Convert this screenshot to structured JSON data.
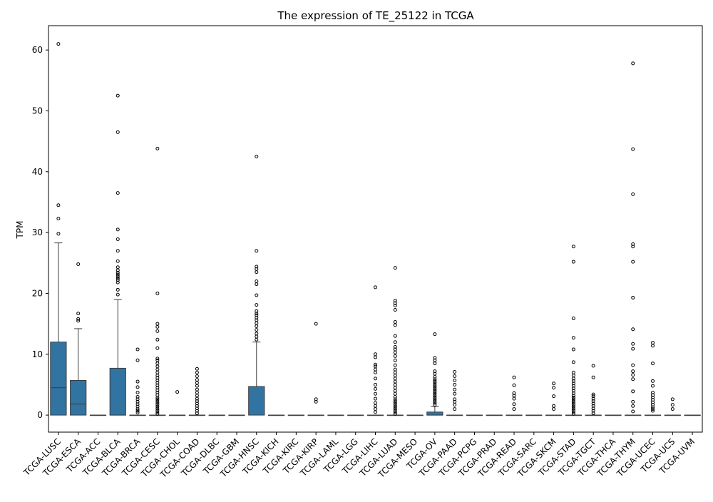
{
  "chart_data": {
    "type": "boxplot",
    "title": "The expression of TE_25122 in TCGA",
    "xlabel": "",
    "ylabel": "TPM",
    "ylim": [
      -2.8,
      64
    ],
    "yticks": [
      0,
      10,
      20,
      30,
      40,
      50,
      60
    ],
    "grid": false,
    "legend": "none",
    "box_color": "#3274a1",
    "categories": [
      "TCGA-LUSC",
      "TCGA-ESCA",
      "TCGA-ACC",
      "TCGA-BLCA",
      "TCGA-BRCA",
      "TCGA-CESC",
      "TCGA-CHOL",
      "TCGA-COAD",
      "TCGA-DLBC",
      "TCGA-GBM",
      "TCGA-HNSC",
      "TCGA-KICH",
      "TCGA-KIRC",
      "TCGA-KIRP",
      "TCGA-LAML",
      "TCGA-LGG",
      "TCGA-LIHC",
      "TCGA-LUAD",
      "TCGA-MESO",
      "TCGA-OV",
      "TCGA-PAAD",
      "TCGA-PCPG",
      "TCGA-PRAD",
      "TCGA-READ",
      "TCGA-SARC",
      "TCGA-SKCM",
      "TCGA-STAD",
      "TCGA-TGCT",
      "TCGA-THCA",
      "TCGA-THYM",
      "TCGA-UCEC",
      "TCGA-UCS",
      "TCGA-UVM"
    ],
    "boxes": [
      {
        "q1": 0,
        "median": 4.5,
        "q3": 12,
        "wlo": 0,
        "whi": 28.3,
        "outliers": [
          29.8,
          32.3,
          34.5,
          61
        ]
      },
      {
        "q1": 0,
        "median": 1.8,
        "q3": 5.7,
        "wlo": 0,
        "whi": 14.2,
        "outliers": [
          15.5,
          15.8,
          16.7,
          24.8
        ]
      },
      {
        "q1": 0,
        "median": 0,
        "q3": 0,
        "wlo": 0,
        "whi": 0,
        "outliers": []
      },
      {
        "q1": 0,
        "median": 0,
        "q3": 7.7,
        "wlo": 0,
        "whi": 19,
        "outliers": [
          19.8,
          20.6,
          21.8,
          22.2,
          22.5,
          22.8,
          23.1,
          23.4,
          23.8,
          24.3,
          25.3,
          27,
          28.9,
          30.5,
          36.5,
          46.5,
          52.5
        ]
      },
      {
        "q1": 0,
        "median": 0,
        "q3": 0,
        "wlo": 0,
        "whi": 0,
        "outliers": [
          0.4,
          0.7,
          1,
          1.4,
          1.8,
          2.2,
          2.6,
          3,
          3.7,
          4.6,
          5.5,
          9,
          10.8
        ]
      },
      {
        "q1": 0,
        "median": 0,
        "q3": 0,
        "wlo": 0,
        "whi": 0,
        "outliers": [
          0.2,
          0.5,
          0.8,
          1.1,
          1.4,
          1.7,
          2,
          2.3,
          2.6,
          2.9,
          3.3,
          3.7,
          4.1,
          4.5,
          4.9,
          5.3,
          5.7,
          6.1,
          6.5,
          7,
          7.5,
          8,
          8.5,
          9,
          9.3,
          11,
          12.4,
          13.8,
          14.5,
          15,
          20,
          43.8
        ]
      },
      {
        "q1": 0,
        "median": 0,
        "q3": 0,
        "wlo": 0,
        "whi": 0,
        "outliers": [
          3.8
        ]
      },
      {
        "q1": 0,
        "median": 0,
        "q3": 0,
        "wlo": 0,
        "whi": 0,
        "outliers": [
          0.3,
          0.7,
          1.1,
          1.5,
          1.9,
          2.3,
          2.7,
          3.2,
          3.7,
          4.2,
          4.8,
          5.3,
          5.8,
          6.4,
          7,
          7.6
        ]
      },
      {
        "q1": 0,
        "median": 0,
        "q3": 0,
        "wlo": 0,
        "whi": 0,
        "outliers": []
      },
      {
        "q1": 0,
        "median": 0,
        "q3": 0,
        "wlo": 0,
        "whi": 0,
        "outliers": []
      },
      {
        "q1": 0,
        "median": 4.7,
        "q3": 4.7,
        "wlo": 0,
        "whi": 12,
        "outliers": [
          12.4,
          12.9,
          13.4,
          14,
          14.6,
          15.1,
          15.6,
          16,
          16.4,
          16.7,
          17.1,
          18.1,
          19.7,
          21.5,
          22,
          23.5,
          24,
          24.4,
          27,
          42.5
        ]
      },
      {
        "q1": 0,
        "median": 0,
        "q3": 0,
        "wlo": 0,
        "whi": 0,
        "outliers": []
      },
      {
        "q1": 0,
        "median": 0,
        "q3": 0,
        "wlo": 0,
        "whi": 0,
        "outliers": []
      },
      {
        "q1": 0,
        "median": 0,
        "q3": 0,
        "wlo": 0,
        "whi": 0,
        "outliers": [
          2.2,
          2.6,
          15
        ]
      },
      {
        "q1": 0,
        "median": 0,
        "q3": 0,
        "wlo": 0,
        "whi": 0,
        "outliers": []
      },
      {
        "q1": 0,
        "median": 0,
        "q3": 0,
        "wlo": 0,
        "whi": 0,
        "outliers": []
      },
      {
        "q1": 0,
        "median": 0,
        "q3": 0,
        "wlo": 0,
        "whi": 0,
        "outliers": [
          0.5,
          1,
          1.5,
          2,
          2.7,
          3.5,
          4.3,
          5,
          6,
          7,
          7.5,
          8,
          8.3,
          9.5,
          10,
          21
        ]
      },
      {
        "q1": 0,
        "median": 0,
        "q3": 0,
        "wlo": 0,
        "whi": 0,
        "outliers": [
          0.2,
          0.5,
          0.8,
          1.1,
          1.4,
          1.7,
          2,
          2.3,
          2.6,
          3,
          3.5,
          4,
          4.5,
          5,
          5.5,
          6,
          6.5,
          7,
          7.5,
          8.2,
          9,
          9.7,
          10.3,
          10.8,
          11.2,
          12,
          13,
          14.8,
          15.3,
          17.3,
          18,
          18.4,
          18.8,
          24.2
        ]
      },
      {
        "q1": 0,
        "median": 0,
        "q3": 0,
        "wlo": 0,
        "whi": 0,
        "outliers": []
      },
      {
        "q1": 0,
        "median": 0,
        "q3": 0.5,
        "wlo": 0,
        "whi": 1.4,
        "outliers": [
          1.7,
          2,
          2.3,
          2.6,
          2.9,
          3.2,
          3.5,
          3.8,
          4.1,
          4.4,
          4.7,
          5,
          5.3,
          5.6,
          5.9,
          6.3,
          6.8,
          7.2,
          8.5,
          9,
          9.4,
          13.3
        ]
      },
      {
        "q1": 0,
        "median": 0,
        "q3": 0,
        "wlo": 0,
        "whi": 0,
        "outliers": [
          1,
          1.7,
          2.2,
          2.6,
          3.5,
          4.2,
          5,
          5.7,
          6.4,
          7.1
        ]
      },
      {
        "q1": 0,
        "median": 0,
        "q3": 0,
        "wlo": 0,
        "whi": 0,
        "outliers": []
      },
      {
        "q1": 0,
        "median": 0,
        "q3": 0,
        "wlo": 0,
        "whi": 0,
        "outliers": []
      },
      {
        "q1": 0,
        "median": 0,
        "q3": 0,
        "wlo": 0,
        "whi": 0,
        "outliers": [
          1,
          1.8,
          2.7,
          3.2,
          3.6,
          4.9,
          6.2
        ]
      },
      {
        "q1": 0,
        "median": 0,
        "q3": 0,
        "wlo": 0,
        "whi": 0,
        "outliers": []
      },
      {
        "q1": 0,
        "median": 0,
        "q3": 0,
        "wlo": 0,
        "whi": 0,
        "outliers": [
          1,
          1.5,
          3.1,
          4.5,
          5.2
        ]
      },
      {
        "q1": 0,
        "median": 0,
        "q3": 0,
        "wlo": 0,
        "whi": 0,
        "outliers": [
          0.2,
          0.5,
          0.8,
          1.1,
          1.4,
          1.7,
          2,
          2.3,
          2.6,
          2.9,
          3.2,
          3.6,
          4,
          4.4,
          4.8,
          5.2,
          5.6,
          6,
          6.5,
          7,
          8.7,
          10.8,
          12.7,
          15.9,
          25.2,
          27.7
        ]
      },
      {
        "q1": 0,
        "median": 0,
        "q3": 0,
        "wlo": 0,
        "whi": 0,
        "outliers": [
          0.3,
          0.7,
          1.1,
          1.5,
          1.9,
          2.3,
          2.7,
          3.1,
          3.4,
          6.2,
          8.1
        ]
      },
      {
        "q1": 0,
        "median": 0,
        "q3": 0,
        "wlo": 0,
        "whi": 0,
        "outliers": []
      },
      {
        "q1": 0,
        "median": 0,
        "q3": 0,
        "wlo": 0,
        "whi": 0,
        "outliers": [
          0.6,
          1.5,
          2.2,
          3.9,
          5.9,
          6.6,
          7.2,
          8.2,
          10.9,
          11.7,
          14.1,
          19.3,
          25.2,
          27.7,
          28.1,
          36.3,
          43.7,
          57.8
        ]
      },
      {
        "q1": 0,
        "median": 0,
        "q3": 0,
        "wlo": 0,
        "whi": 0,
        "outliers": [
          0.7,
          1,
          1.3,
          1.7,
          2.1,
          2.5,
          2.9,
          3.3,
          3.7,
          4.8,
          5.6,
          8.5,
          11.4,
          11.9
        ]
      },
      {
        "q1": 0,
        "median": 0,
        "q3": 0,
        "wlo": 0,
        "whi": 0,
        "outliers": [
          1,
          1.7,
          2.6
        ]
      },
      {
        "q1": 0,
        "median": 0,
        "q3": 0,
        "wlo": 0,
        "whi": 0,
        "outliers": []
      }
    ]
  }
}
